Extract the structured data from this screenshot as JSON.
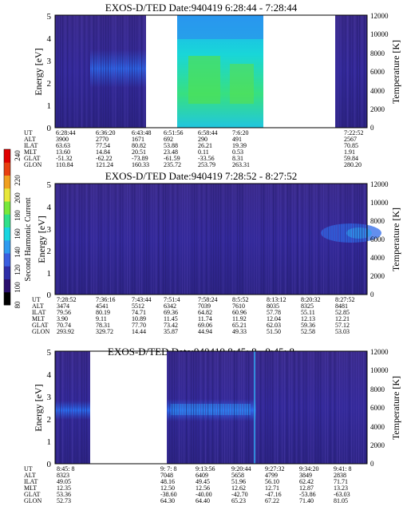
{
  "colorbar": {
    "label": "Second Harmonic Current",
    "ticks": [
      "80",
      "100",
      "120",
      "140",
      "160",
      "180",
      "200",
      "220",
      "240"
    ],
    "colors": [
      "#000000",
      "#2a0f6e",
      "#2e2ea8",
      "#3a5ee0",
      "#2f9bf0",
      "#19d6e0",
      "#2fe08a",
      "#78e83a",
      "#e8e83a",
      "#f0a020",
      "#e84010",
      "#e00000"
    ]
  },
  "panels": [
    {
      "title": "EXOS-D/TED   Date:940419  6:28:44 - 7:28:44",
      "ylabel": "Energy [eV]",
      "y2label": "Temperature [K]",
      "y_ticks": [
        "0",
        "1",
        "2",
        "3",
        "4",
        "5"
      ],
      "y2_ticks": [
        "0",
        "2000",
        "4000",
        "6000",
        "8000",
        "10000",
        "12000"
      ],
      "orbit_rows": [
        {
          "label": "UT",
          "values": [
            "6:28:44",
            "6:36:20",
            "6:43:48",
            "6:51:56",
            "6:58:44",
            "7:6:20",
            "7:22:52"
          ]
        },
        {
          "label": "ALT",
          "values": [
            "3900",
            "2770",
            "1671",
            "692",
            "290",
            "491",
            "2567"
          ]
        },
        {
          "label": "ILAT",
          "values": [
            "63.63",
            "77.54",
            "80.82",
            "53.88",
            "26.21",
            "19.39",
            "70.85"
          ]
        },
        {
          "label": "MLT",
          "values": [
            "13.60",
            "14.84",
            "20.51",
            "23.48",
            "0.11",
            "0.53",
            "1.91"
          ]
        },
        {
          "label": "GLAT",
          "values": [
            "-51.32",
            "-62.22",
            "-73.89",
            "-61.59",
            "-33.56",
            "8.31",
            "59.84"
          ]
        },
        {
          "label": "GLON",
          "values": [
            "110.84",
            "121.24",
            "160.33",
            "235.72",
            "253.79",
            "263.31",
            "280.20"
          ]
        }
      ]
    },
    {
      "title": "EXOS-D/TED   Date:940419  7:28:52 - 8:27:52",
      "ylabel": "Energy [eV]",
      "y2label": "Temperature [K]",
      "y_ticks": [
        "0",
        "1",
        "2",
        "3",
        "4",
        "5"
      ],
      "y2_ticks": [
        "0",
        "2000",
        "4000",
        "6000",
        "8000",
        "10000",
        "12000"
      ],
      "orbit_rows": [
        {
          "label": "UT",
          "values": [
            "7:28:52",
            "7:36:16",
            "7:43:44",
            "7:51:4",
            "7:58:24",
            "8:5:52",
            "8:13:12",
            "8:20:32",
            "8:27:52"
          ]
        },
        {
          "label": "ALT",
          "values": [
            "3474",
            "4541",
            "5512",
            "6342",
            "7039",
            "7610",
            "8035",
            "8325",
            "8481"
          ]
        },
        {
          "label": "ILAT",
          "values": [
            "79.56",
            "80.19",
            "74.71",
            "69.36",
            "64.82",
            "60.96",
            "57.78",
            "55.11",
            "52.85"
          ]
        },
        {
          "label": "MLT",
          "values": [
            "3.90",
            "9.11",
            "10.89",
            "11.45",
            "11.74",
            "11.92",
            "12.04",
            "12.13",
            "12.21"
          ]
        },
        {
          "label": "GLAT",
          "values": [
            "70.74",
            "78.31",
            "77.70",
            "73.42",
            "69.06",
            "65.21",
            "62.03",
            "59.36",
            "57.12"
          ]
        },
        {
          "label": "GLON",
          "values": [
            "293.92",
            "329.72",
            "14.44",
            "35.87",
            "44.94",
            "49.33",
            "51.50",
            "52.58",
            "53.03"
          ]
        }
      ]
    },
    {
      "title": "EXOS-D/TED   Date:940419  8:45: 8 - 9:45: 8",
      "ylabel": "Energy [eV]",
      "y2label": "Temperature [K]",
      "y_ticks": [
        "0",
        "1",
        "2",
        "3",
        "4",
        "5"
      ],
      "y2_ticks": [
        "0",
        "2000",
        "4000",
        "6000",
        "8000",
        "10000",
        "12000"
      ],
      "orbit_rows": [
        {
          "label": "UT",
          "values": [
            "8:45: 8",
            "9: 7: 8",
            "9:13:56",
            "9:20:44",
            "9:27:32",
            "9:34:20",
            "9:41: 8"
          ]
        },
        {
          "label": "ALT",
          "values": [
            "8323",
            "7048",
            "6409",
            "5658",
            "4799",
            "3849",
            "2838"
          ]
        },
        {
          "label": "ILAT",
          "values": [
            "49.05",
            "48.16",
            "49.45",
            "51.96",
            "56.10",
            "62.42",
            "71.71"
          ]
        },
        {
          "label": "MLT",
          "values": [
            "12.35",
            "12.50",
            "12.56",
            "12.62",
            "12.71",
            "12.87",
            "13.23"
          ]
        },
        {
          "label": "GLAT",
          "values": [
            "53.36",
            "-38.60",
            "-40.00",
            "-42.70",
            "-47.16",
            "-53.86",
            "-63.03"
          ]
        },
        {
          "label": "GLON",
          "values": [
            "52.73",
            "64.30",
            "64.40",
            "65.23",
            "67.22",
            "71.40",
            "81.05"
          ]
        }
      ]
    }
  ],
  "chart_data": [
    {
      "type": "heatmap",
      "title": "EXOS-D/TED   Date:940419  6:28:44 - 7:28:44",
      "ylabel": "Energy [eV]",
      "y2label": "Temperature [K]",
      "ylim": [
        0,
        5
      ],
      "y2lim": [
        0,
        12000
      ],
      "x_ticks": [
        "6:28:44",
        "6:36:20",
        "6:43:48",
        "6:51:56",
        "6:58:44",
        "7:6:20",
        "7:22:52"
      ],
      "colorbar_range": [
        80,
        240
      ]
    },
    {
      "type": "heatmap",
      "title": "EXOS-D/TED   Date:940419  7:28:52 - 8:27:52",
      "ylabel": "Energy [eV]",
      "y2label": "Temperature [K]",
      "ylim": [
        0,
        5
      ],
      "y2lim": [
        0,
        12000
      ],
      "x_ticks": [
        "7:28:52",
        "7:36:16",
        "7:43:44",
        "7:51:4",
        "7:58:24",
        "8:5:52",
        "8:13:12",
        "8:20:32",
        "8:27:52"
      ],
      "colorbar_range": [
        80,
        240
      ]
    },
    {
      "type": "heatmap",
      "title": "EXOS-D/TED   Date:940419  8:45: 8 - 9:45: 8",
      "ylabel": "Energy [eV]",
      "y2label": "Temperature [K]",
      "ylim": [
        0,
        5
      ],
      "y2lim": [
        0,
        12000
      ],
      "x_ticks": [
        "8:45: 8",
        "9: 7: 8",
        "9:13:56",
        "9:20:44",
        "9:27:32",
        "9:34:20",
        "9:41: 8"
      ],
      "colorbar_range": [
        80,
        240
      ]
    }
  ]
}
